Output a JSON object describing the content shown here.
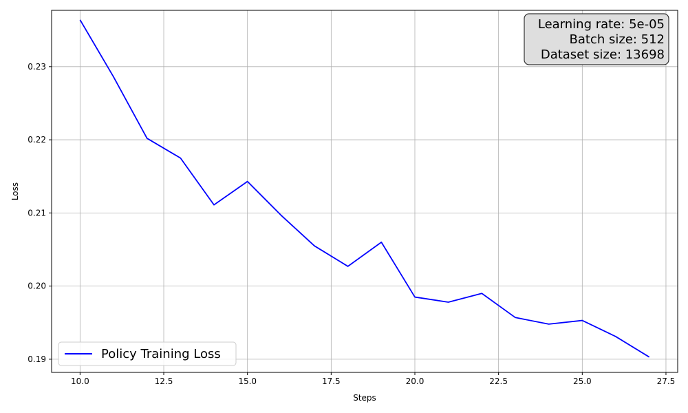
{
  "chart_data": {
    "type": "line",
    "xlabel": "Steps",
    "ylabel": "Loss",
    "xlim": [
      9.15,
      27.85
    ],
    "ylim": [
      0.1882,
      0.2377
    ],
    "xticks": [
      10.0,
      12.5,
      15.0,
      17.5,
      20.0,
      22.5,
      25.0,
      27.5
    ],
    "xtick_labels": [
      "10.0",
      "12.5",
      "15.0",
      "17.5",
      "20.0",
      "22.5",
      "25.0",
      "27.5"
    ],
    "yticks": [
      0.19,
      0.2,
      0.21,
      0.22,
      0.23
    ],
    "ytick_labels": [
      "0.19",
      "0.20",
      "0.21",
      "0.22",
      "0.23"
    ],
    "grid": true,
    "legend_position": "lower-left",
    "annotation_position": "top-right",
    "annotation_lines": [
      "Learning rate: 5e-05",
      "Batch size: 512",
      "Dataset size: 13698"
    ],
    "series": [
      {
        "name": "Policy Training Loss",
        "color": "#0000ff",
        "x": [
          10,
          11,
          12,
          13,
          14,
          15,
          16,
          17,
          18,
          19,
          20,
          21,
          22,
          23,
          24,
          25,
          26,
          27
        ],
        "y": [
          0.2364,
          0.2286,
          0.2202,
          0.2175,
          0.2111,
          0.2143,
          0.2097,
          0.2055,
          0.2027,
          0.206,
          0.1985,
          0.1978,
          0.199,
          0.1957,
          0.1948,
          0.1953,
          0.1931,
          0.1903
        ]
      }
    ]
  }
}
